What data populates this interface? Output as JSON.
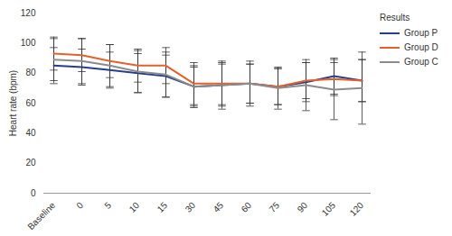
{
  "chart_data": {
    "type": "line",
    "y_label": "Heart rate (bpm)",
    "legend_title": "Results",
    "legend": "right",
    "grid": false,
    "categories": [
      "Baseline",
      "0",
      "5",
      "10",
      "15",
      "30",
      "45",
      "60",
      "75",
      "90",
      "105",
      "120"
    ],
    "series": [
      {
        "name": "Group P",
        "color": "#243f8c",
        "values": [
          85,
          84,
          82,
          80,
          78,
          71,
          72,
          73,
          71,
          74,
          78,
          75
        ],
        "errors": [
          12,
          12,
          12,
          13,
          14,
          13,
          14,
          13,
          12,
          13,
          12,
          14
        ]
      },
      {
        "name": "Group D",
        "color": "#e3622c",
        "values": [
          93,
          92,
          88,
          85,
          85,
          73,
          73,
          73,
          71,
          75,
          76,
          75
        ],
        "errors": [
          11,
          11,
          11,
          11,
          12,
          14,
          14,
          13,
          12,
          12,
          11,
          14
        ]
      },
      {
        "name": "Group C",
        "color": "#8c8c8c",
        "values": [
          89,
          88,
          85,
          81,
          79,
          71,
          72,
          73,
          70,
          72,
          69,
          70
        ],
        "errors": [
          14,
          15,
          14,
          14,
          15,
          14,
          16,
          15,
          14,
          17,
          20,
          24
        ]
      }
    ],
    "ylim": [
      0,
      120
    ],
    "yticks": [
      0,
      20,
      40,
      60,
      80,
      100,
      120
    ]
  }
}
